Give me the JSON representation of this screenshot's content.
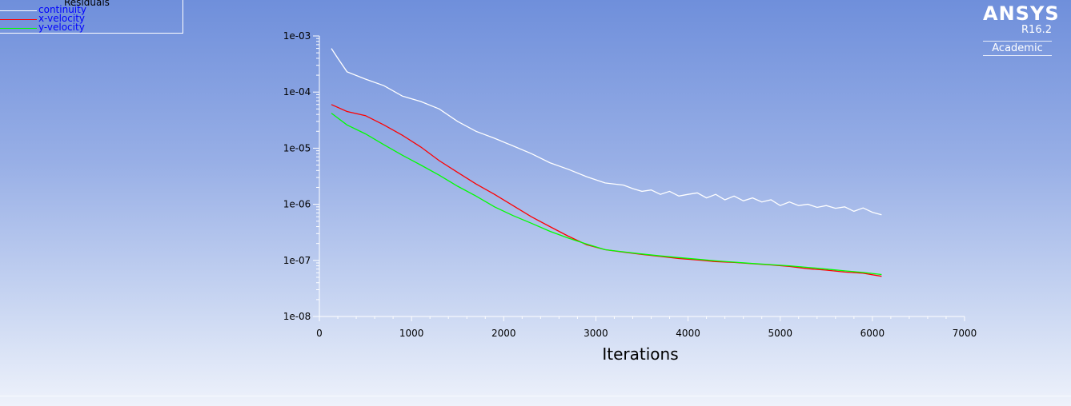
{
  "logo": {
    "brand": "ANSYS",
    "version": "R16.2",
    "edition": "Academic"
  },
  "legend": {
    "title": "Residuals",
    "items": [
      {
        "label": "continuity",
        "color": "#ffffff"
      },
      {
        "label": "x-velocity",
        "color": "#ff0000"
      },
      {
        "label": "y-velocity",
        "color": "#00ff00"
      }
    ]
  },
  "chart_data": {
    "type": "line",
    "title": "",
    "xlabel": "Iterations",
    "ylabel": "",
    "xlim": [
      0,
      7000
    ],
    "ylim": [
      1e-08,
      0.001
    ],
    "yscale": "log",
    "grid": false,
    "legend_position": "top-left",
    "x_ticks": [
      "0",
      "1000",
      "2000",
      "3000",
      "4000",
      "5000",
      "6000",
      "7000"
    ],
    "y_ticks": [
      "1e-03",
      "1e-04",
      "1e-05",
      "1e-06",
      "1e-07",
      "1e-08"
    ],
    "series": [
      {
        "name": "continuity",
        "color": "#ffffff",
        "x": [
          130,
          200,
          300,
          500,
          700,
          900,
          1100,
          1300,
          1500,
          1700,
          1900,
          2100,
          2300,
          2500,
          2700,
          2900,
          3100,
          3300,
          3400,
          3500,
          3600,
          3700,
          3800,
          3900,
          4000,
          4100,
          4200,
          4300,
          4400,
          4500,
          4600,
          4700,
          4800,
          4900,
          5000,
          5100,
          5200,
          5300,
          5400,
          5500,
          5600,
          5700,
          5800,
          5900,
          6000,
          6100
        ],
        "y": [
          0.0006,
          0.0004,
          0.00023,
          0.00017,
          0.00013,
          8.5e-05,
          6.8e-05,
          5e-05,
          3e-05,
          2e-05,
          1.5e-05,
          1.1e-05,
          8e-06,
          5.5e-06,
          4.2e-06,
          3.1e-06,
          2.4e-06,
          2.2e-06,
          1.9e-06,
          1.7e-06,
          1.8e-06,
          1.5e-06,
          1.7e-06,
          1.4e-06,
          1.5e-06,
          1.6e-06,
          1.3e-06,
          1.5e-06,
          1.2e-06,
          1.4e-06,
          1.15e-06,
          1.3e-06,
          1.1e-06,
          1.2e-06,
          9.5e-07,
          1.1e-06,
          9.5e-07,
          1e-06,
          8.8e-07,
          9.5e-07,
          8.5e-07,
          9e-07,
          7.5e-07,
          8.6e-07,
          7.2e-07,
          6.5e-07
        ]
      },
      {
        "name": "x-velocity",
        "color": "#ff0000",
        "x": [
          130,
          300,
          500,
          700,
          900,
          1100,
          1300,
          1500,
          1700,
          1900,
          2100,
          2300,
          2500,
          2700,
          2900,
          3100,
          3300,
          3500,
          3700,
          3900,
          4100,
          4300,
          4500,
          4700,
          4900,
          5100,
          5300,
          5500,
          5700,
          5900,
          6100
        ],
        "y": [
          6e-05,
          4.5e-05,
          3.8e-05,
          2.6e-05,
          1.7e-05,
          1.05e-05,
          6e-06,
          3.7e-06,
          2.3e-06,
          1.5e-06,
          9.5e-07,
          6e-07,
          4e-07,
          2.7e-07,
          1.9e-07,
          1.55e-07,
          1.4e-07,
          1.28e-07,
          1.18e-07,
          1.08e-07,
          1.02e-07,
          9.5e-08,
          9.2e-08,
          8.7e-08,
          8.3e-08,
          7.8e-08,
          7.1e-08,
          6.7e-08,
          6.2e-08,
          5.9e-08,
          5.2e-08
        ]
      },
      {
        "name": "y-velocity",
        "color": "#00ff00",
        "x": [
          130,
          300,
          500,
          700,
          900,
          1100,
          1300,
          1500,
          1700,
          1900,
          2100,
          2300,
          2500,
          2700,
          2900,
          3100,
          3300,
          3500,
          3700,
          3900,
          4100,
          4300,
          4500,
          4700,
          4900,
          5100,
          5300,
          5500,
          5700,
          5900,
          6100
        ],
        "y": [
          4.2e-05,
          2.6e-05,
          1.8e-05,
          1.15e-05,
          7.5e-06,
          5e-06,
          3.3e-06,
          2.1e-06,
          1.4e-06,
          9e-07,
          6.3e-07,
          4.6e-07,
          3.3e-07,
          2.5e-07,
          1.95e-07,
          1.55e-07,
          1.42e-07,
          1.3e-07,
          1.2e-07,
          1.12e-07,
          1.05e-07,
          9.8e-08,
          9.3e-08,
          8.8e-08,
          8.4e-08,
          8e-08,
          7.5e-08,
          7e-08,
          6.5e-08,
          6.1e-08,
          5.6e-08
        ]
      }
    ]
  }
}
